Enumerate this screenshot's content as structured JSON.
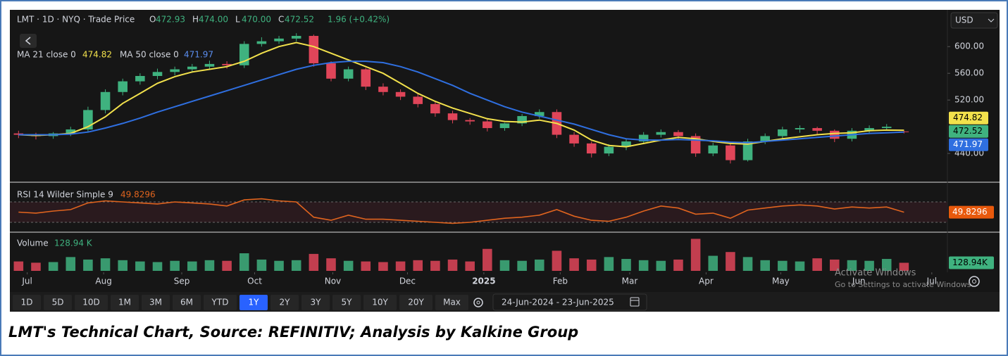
{
  "chart_data": [
    {
      "type": "candlestick",
      "title": "LMT · 1D · NYQ · Trade Price",
      "legend_prefixes": [
        "O",
        "H",
        "L",
        "C"
      ],
      "legend_value_labels": [
        "472.93",
        "474.00",
        "470.00",
        "472.52"
      ],
      "change": "1.96 (+0.42%)",
      "up_color": "#3fb27f",
      "down_color": "#e04559",
      "x": [
        0.5,
        1.5,
        2.5,
        3.5,
        4.5,
        5.5,
        6.5,
        7.5,
        8.5,
        9.5,
        10.5,
        11.5,
        12.5,
        13.5,
        14.5,
        15.5,
        16.5,
        17.5,
        18.5,
        19.5,
        20.5,
        21.5,
        22.5,
        23.5,
        24.5,
        25.5,
        26.5,
        27.5,
        28.5,
        29.5,
        30.5,
        31.5,
        32.5,
        33.5,
        34.5,
        35.5,
        36.5,
        37.5,
        38.5,
        39.5,
        40.5,
        41.5,
        42.5,
        43.5,
        44.5,
        45.5,
        46.5,
        47.5,
        48.5,
        49.5,
        50.5,
        51.5
      ],
      "open": [
        470,
        468,
        466,
        470,
        476,
        505,
        532,
        548,
        556,
        562,
        566,
        570,
        574,
        572,
        604,
        608,
        612,
        616,
        575,
        552,
        566,
        540,
        532,
        525,
        514,
        500,
        490,
        488,
        478,
        485,
        496,
        502,
        468,
        455,
        440,
        450,
        458,
        468,
        472,
        466,
        440,
        452,
        430,
        458,
        466,
        476,
        478,
        474,
        462,
        474,
        478,
        472.93
      ],
      "high": [
        474,
        471,
        472,
        480,
        510,
        536,
        552,
        560,
        567,
        570,
        574,
        579,
        578,
        608,
        614,
        616,
        620,
        618,
        578,
        570,
        568,
        545,
        536,
        529,
        518,
        504,
        493,
        492,
        486,
        499,
        506,
        506,
        472,
        458,
        454,
        462,
        472,
        476,
        475,
        470,
        456,
        455,
        462,
        470,
        480,
        482,
        480,
        476,
        478,
        482,
        484,
        474
      ],
      "low": [
        463,
        461,
        462,
        466,
        472,
        500,
        527,
        543,
        551,
        557,
        561,
        566,
        567,
        568,
        600,
        604,
        608,
        570,
        548,
        548,
        535,
        527,
        520,
        509,
        495,
        485,
        483,
        473,
        474,
        481,
        492,
        463,
        450,
        434,
        436,
        445,
        454,
        464,
        461,
        435,
        436,
        425,
        428,
        454,
        462,
        471,
        469,
        457,
        458,
        469,
        474,
        470
      ],
      "close": [
        468,
        466,
        470,
        476,
        505,
        532,
        548,
        556,
        562,
        566,
        570,
        574,
        572,
        604,
        608,
        612,
        616,
        575,
        552,
        566,
        540,
        532,
        525,
        514,
        500,
        490,
        488,
        478,
        485,
        496,
        502,
        468,
        455,
        440,
        450,
        458,
        468,
        472,
        466,
        440,
        452,
        430,
        458,
        466,
        476,
        478,
        474,
        462,
        474,
        478,
        480,
        472.52
      ],
      "series": [
        {
          "name": "MA 21 close 0",
          "color": "#f2e14c",
          "values": [
            468,
            467,
            468,
            470,
            480,
            495,
            515,
            530,
            545,
            555,
            562,
            566,
            570,
            578,
            590,
            600,
            606,
            600,
            590,
            580,
            570,
            560,
            545,
            530,
            518,
            508,
            500,
            492,
            488,
            487,
            490,
            485,
            475,
            460,
            452,
            450,
            455,
            460,
            464,
            462,
            458,
            455,
            454,
            458,
            462,
            465,
            468,
            470,
            471,
            474,
            475,
            474.82
          ]
        },
        {
          "name": "MA 50 close 0",
          "color": "#2f6fe0",
          "values": [
            468,
            468,
            468,
            469,
            472,
            478,
            485,
            493,
            502,
            510,
            518,
            526,
            534,
            542,
            550,
            558,
            566,
            572,
            576,
            578,
            578,
            576,
            570,
            562,
            552,
            542,
            530,
            520,
            510,
            502,
            496,
            490,
            484,
            476,
            468,
            462,
            460,
            460,
            461,
            460,
            459,
            457,
            456,
            458,
            460,
            462,
            464,
            466,
            468,
            470,
            471,
            471.97
          ]
        }
      ],
      "xlim": [
        0,
        54
      ],
      "xticks": [
        {
          "value": 1,
          "label": "Jul"
        },
        {
          "value": 5.4,
          "label": "Aug"
        },
        {
          "value": 9.9,
          "label": "Sep"
        },
        {
          "value": 14.1,
          "label": "Oct"
        },
        {
          "value": 18.6,
          "label": "Nov"
        },
        {
          "value": 22.9,
          "label": "Dec"
        },
        {
          "value": 27.3,
          "label": "2025"
        },
        {
          "value": 31.7,
          "label": "Feb"
        },
        {
          "value": 35.7,
          "label": "Mar"
        },
        {
          "value": 40.1,
          "label": "Apr"
        },
        {
          "value": 44.4,
          "label": "May"
        },
        {
          "value": 48.9,
          "label": "Jun"
        },
        {
          "value": 53.1,
          "label": "Jul"
        }
      ],
      "ylim": [
        398,
        655
      ],
      "yticks": [
        {
          "value": 440,
          "label": "440.00"
        },
        {
          "value": 520,
          "label": "520.00"
        },
        {
          "value": 560,
          "label": "560.00"
        },
        {
          "value": 600,
          "label": "600.00"
        }
      ]
    },
    {
      "type": "line",
      "name": "RSI 14 Wilder Simple 9",
      "color": "#e0641e",
      "values": [
        50,
        48,
        52,
        55,
        68,
        72,
        70,
        68,
        66,
        70,
        68,
        66,
        62,
        74,
        76,
        72,
        70,
        40,
        34,
        44,
        36,
        36,
        34,
        32,
        30,
        28,
        30,
        34,
        38,
        40,
        44,
        55,
        42,
        34,
        32,
        40,
        52,
        62,
        58,
        46,
        48,
        38,
        54,
        58,
        62,
        64,
        62,
        56,
        60,
        58,
        60,
        49.8296
      ],
      "levels": [
        70,
        30
      ],
      "ylim": [
        13.4,
        104.5
      ]
    },
    {
      "type": "bar",
      "name": "Volume",
      "values": [
        150,
        130,
        140,
        220,
        180,
        200,
        170,
        150,
        140,
        160,
        150,
        170,
        160,
        280,
        180,
        160,
        170,
        270,
        200,
        160,
        150,
        140,
        150,
        170,
        160,
        180,
        150,
        350,
        170,
        160,
        180,
        320,
        200,
        180,
        220,
        190,
        170,
        160,
        180,
        510,
        240,
        300,
        220,
        170,
        160,
        150,
        200,
        180,
        170,
        160,
        190,
        128.94
      ],
      "legend_value_label": "128.94 K",
      "badge_value_label": "128.94K",
      "ylim": [
        0,
        560
      ]
    }
  ],
  "currency": "USD",
  "ranges": [
    "1D",
    "5D",
    "10D",
    "1M",
    "3M",
    "6M",
    "YTD",
    "1Y",
    "2Y",
    "3Y",
    "5Y",
    "10Y",
    "20Y",
    "Max"
  ],
  "active_range": "1Y",
  "date_range": "24-Jun-2024 - 23-Jun-2025",
  "watermark": {
    "title": "Activate Windows",
    "subtitle": "Go to Settings to activate Windows."
  },
  "caption": "LMT's Technical Chart, Source: REFINITIV; Analysis by Kalkine Group"
}
